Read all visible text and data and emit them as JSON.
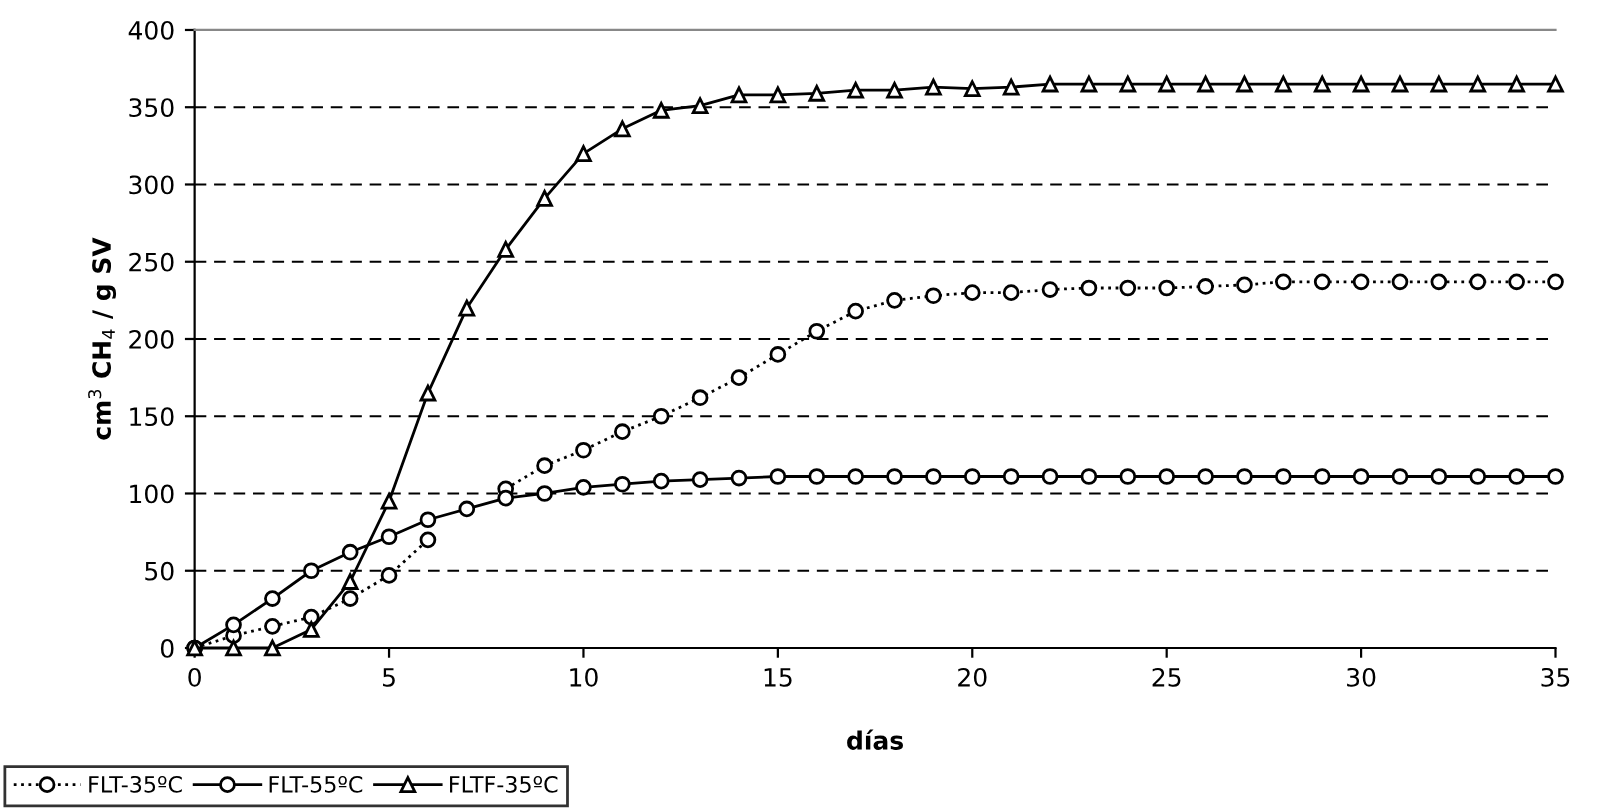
{
  "chart_data": {
    "type": "line",
    "xlabel": "días",
    "ylabel": "cm$^{3}$ CH$_{4}$ / g SV",
    "x": [
      0,
      1,
      2,
      3,
      4,
      5,
      6,
      7,
      8,
      9,
      10,
      11,
      12,
      13,
      14,
      15,
      16,
      17,
      18,
      19,
      20,
      21,
      22,
      23,
      24,
      25,
      26,
      27,
      28,
      29,
      30,
      31,
      32,
      33,
      34,
      35
    ],
    "series": [
      {
        "name": "FLT-35ºC",
        "color": "#000000",
        "marker": "circle",
        "line_style": "dotted",
        "values": [
          0,
          8,
          14,
          20,
          32,
          47,
          70,
          null,
          103,
          118,
          128,
          140,
          150,
          162,
          175,
          190,
          205,
          218,
          225,
          228,
          230,
          230,
          232,
          233,
          233,
          233,
          234,
          235,
          237,
          237,
          237,
          237,
          237,
          237,
          237,
          237
        ]
      },
      {
        "name": "FLT-55ºC",
        "color": "#000000",
        "marker": "circle",
        "line_style": "solid",
        "values": [
          0,
          15,
          32,
          50,
          62,
          72,
          83,
          90,
          97,
          100,
          104,
          106,
          108,
          109,
          110,
          111,
          111,
          111,
          111,
          111,
          111,
          111,
          111,
          111,
          111,
          111,
          111,
          111,
          111,
          111,
          111,
          111,
          111,
          111,
          111,
          111
        ]
      },
      {
        "name": "FLTF-35ºC",
        "color": "#000000",
        "marker": "triangle",
        "line_style": "solid",
        "values": [
          0,
          0,
          0,
          12,
          43,
          95,
          165,
          220,
          258,
          291,
          320,
          336,
          348,
          351,
          358,
          358,
          359,
          361,
          361,
          363,
          362,
          363,
          365,
          365,
          365,
          365,
          365,
          365,
          365,
          365,
          365,
          365,
          365,
          365,
          365,
          365
        ]
      }
    ],
    "xlim": [
      0,
      35
    ],
    "xticks": [
      0,
      5,
      10,
      15,
      20,
      25,
      30,
      35
    ],
    "ylim": [
      0,
      400
    ],
    "yticks": [
      0,
      50,
      100,
      150,
      200,
      250,
      300,
      350,
      400
    ],
    "grid": "y",
    "legend": "bottom left"
  }
}
